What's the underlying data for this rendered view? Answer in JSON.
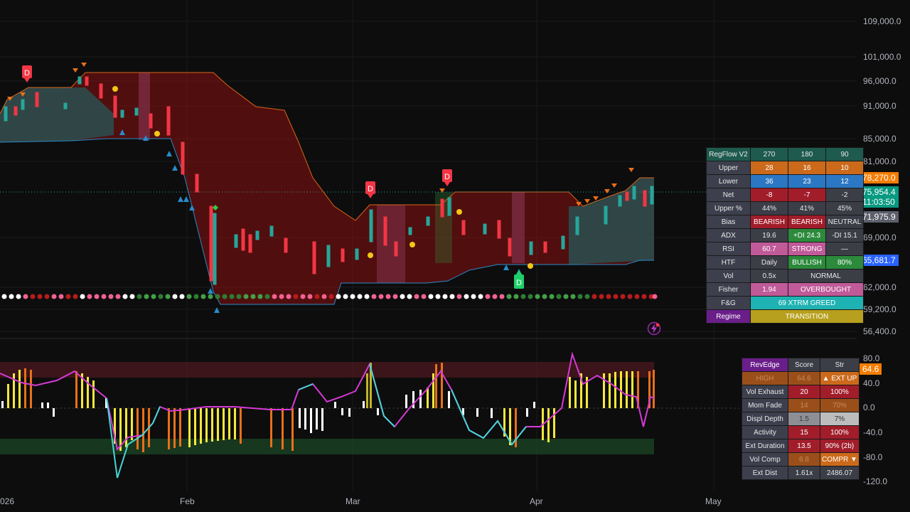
{
  "price_axis": [
    "109,000.0",
    "101,000.0",
    "96,000.0",
    "91,000.0",
    "85,000.0",
    "81,000.0",
    "69,000.0",
    "62,000.0",
    "59,200.0",
    "56,400.0"
  ],
  "price_badges": {
    "upper": {
      "value": "78,270.0",
      "color": "#f57c00"
    },
    "current": {
      "value": "75,954.4",
      "countdown": "11:03:50",
      "color": "#089981"
    },
    "mid": {
      "value": "71,975.9",
      "color": "#5d606b"
    },
    "lower": {
      "value": "65,681.7",
      "color": "#2962ff"
    }
  },
  "osc_axis": [
    "80.0",
    "40.0",
    "0.0",
    "-40.0",
    "-80.0",
    "-120.0"
  ],
  "osc_badge": {
    "value": "64.6",
    "color": "#f57c00"
  },
  "time_axis": [
    "026",
    "Feb",
    "Mar",
    "Apr",
    "May"
  ],
  "regflow": {
    "header": [
      "RegFlow V2",
      "270",
      "180",
      "90"
    ],
    "rows": [
      {
        "label": "Upper",
        "cells": [
          "28",
          "16",
          "10"
        ]
      },
      {
        "label": "Lower",
        "cells": [
          "36",
          "23",
          "12"
        ]
      },
      {
        "label": "Net",
        "cells": [
          "-8",
          "-7",
          "-2"
        ]
      },
      {
        "label": "Upper %",
        "cells": [
          "44%",
          "41%",
          "45%"
        ]
      },
      {
        "label": "Bias",
        "cells": [
          "BEARISH",
          "BEARISH",
          "NEUTRAL"
        ]
      },
      {
        "label": "ADX",
        "cells": [
          "19.6",
          "+DI 24.3",
          "-DI 15.1"
        ]
      },
      {
        "label": "RSI",
        "cells": [
          "60.7",
          "STRONG",
          "—"
        ]
      },
      {
        "label": "HTF",
        "cells": [
          "Daily",
          "BULLISH",
          "80%"
        ]
      },
      {
        "label": "Vol",
        "cells": [
          "0.5x",
          "NORMAL"
        ]
      },
      {
        "label": "Fisher",
        "cells": [
          "1.94",
          "OVERBOUGHT"
        ]
      },
      {
        "label": "F&G",
        "cells": [
          "69 XTRM GREED"
        ]
      },
      {
        "label": "Regime",
        "cells": [
          "TRANSITION"
        ]
      }
    ]
  },
  "revedge": {
    "header": [
      "RevEdge",
      "Score",
      "Str"
    ],
    "rows": [
      {
        "label": "HIGH",
        "cells": [
          "64.6",
          "▲ EXT UP"
        ]
      },
      {
        "label": "Vol Exhaust",
        "cells": [
          "20",
          "100%"
        ]
      },
      {
        "label": "Mom Fade",
        "cells": [
          "14",
          "70%"
        ]
      },
      {
        "label": "Displ Depth",
        "cells": [
          "1.5",
          "7%"
        ]
      },
      {
        "label": "Activity",
        "cells": [
          "15",
          "100%"
        ]
      },
      {
        "label": "Ext Duration",
        "cells": [
          "13.5",
          "90% (2b)"
        ]
      },
      {
        "label": "Vol Comp",
        "cells": [
          "6.8",
          "COMPR ▼"
        ]
      },
      {
        "label": "Ext Dist",
        "cells": [
          "1.61x",
          "2486.07"
        ]
      }
    ]
  },
  "markers": {
    "d_label": "D"
  },
  "icons": {
    "alert": "lightning-icon"
  }
}
